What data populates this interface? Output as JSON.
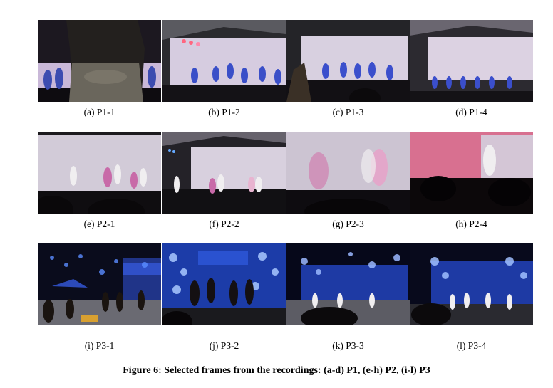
{
  "figure": {
    "caption": "Figure 6: Selected frames from the recordings: (a-d) P1, (e-h) P2, (i-l) P3",
    "panels": [
      {
        "label": "(a) P1-1"
      },
      {
        "label": "(b) P1-2"
      },
      {
        "label": "(c) P1-3"
      },
      {
        "label": "(d) P1-4"
      },
      {
        "label": "(e) P2-1"
      },
      {
        "label": "(f) P2-2"
      },
      {
        "label": "(g) P2-3"
      },
      {
        "label": "(h) P2-4"
      },
      {
        "label": "(i) P3-1"
      },
      {
        "label": "(j) P3-2"
      },
      {
        "label": "(k) P3-3"
      },
      {
        "label": "(l) P3-4"
      }
    ]
  }
}
